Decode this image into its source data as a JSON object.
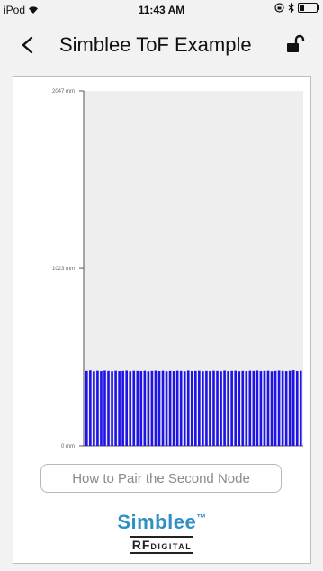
{
  "status_bar": {
    "carrier": "iPod",
    "time": "11:43 AM"
  },
  "nav": {
    "back_icon": "chevron-left-icon",
    "title": "Simblee ToF Example",
    "lock_icon": "unlocked-padlock-icon"
  },
  "chart_data": {
    "type": "bar",
    "y_ticks": [
      "2047 mm",
      "1023 mm",
      "0 mm"
    ],
    "ylim": [
      0,
      2047
    ],
    "values": [
      432,
      435,
      430,
      433,
      431,
      434,
      432,
      430,
      433,
      431,
      432,
      434,
      430,
      433,
      432,
      431,
      433,
      430,
      432,
      434,
      431,
      433,
      430,
      432,
      431,
      433,
      432,
      430,
      434,
      431,
      432,
      433,
      430,
      432,
      431,
      433,
      432,
      430,
      434,
      431,
      432,
      433,
      430,
      432,
      431,
      433,
      432,
      434,
      431,
      432,
      433,
      430,
      432,
      434,
      432,
      431,
      433,
      436,
      431,
      433
    ],
    "bar_color": "#1f14e8",
    "plot_background": "#eeeeee"
  },
  "pair_button": {
    "label": "How to Pair the Second Node"
  },
  "logo": {
    "brand": "Simblee",
    "tm": "™",
    "sub_rf": "RF",
    "sub_digital": "DIGITAL",
    "brand_color": "#2f8ec2"
  }
}
